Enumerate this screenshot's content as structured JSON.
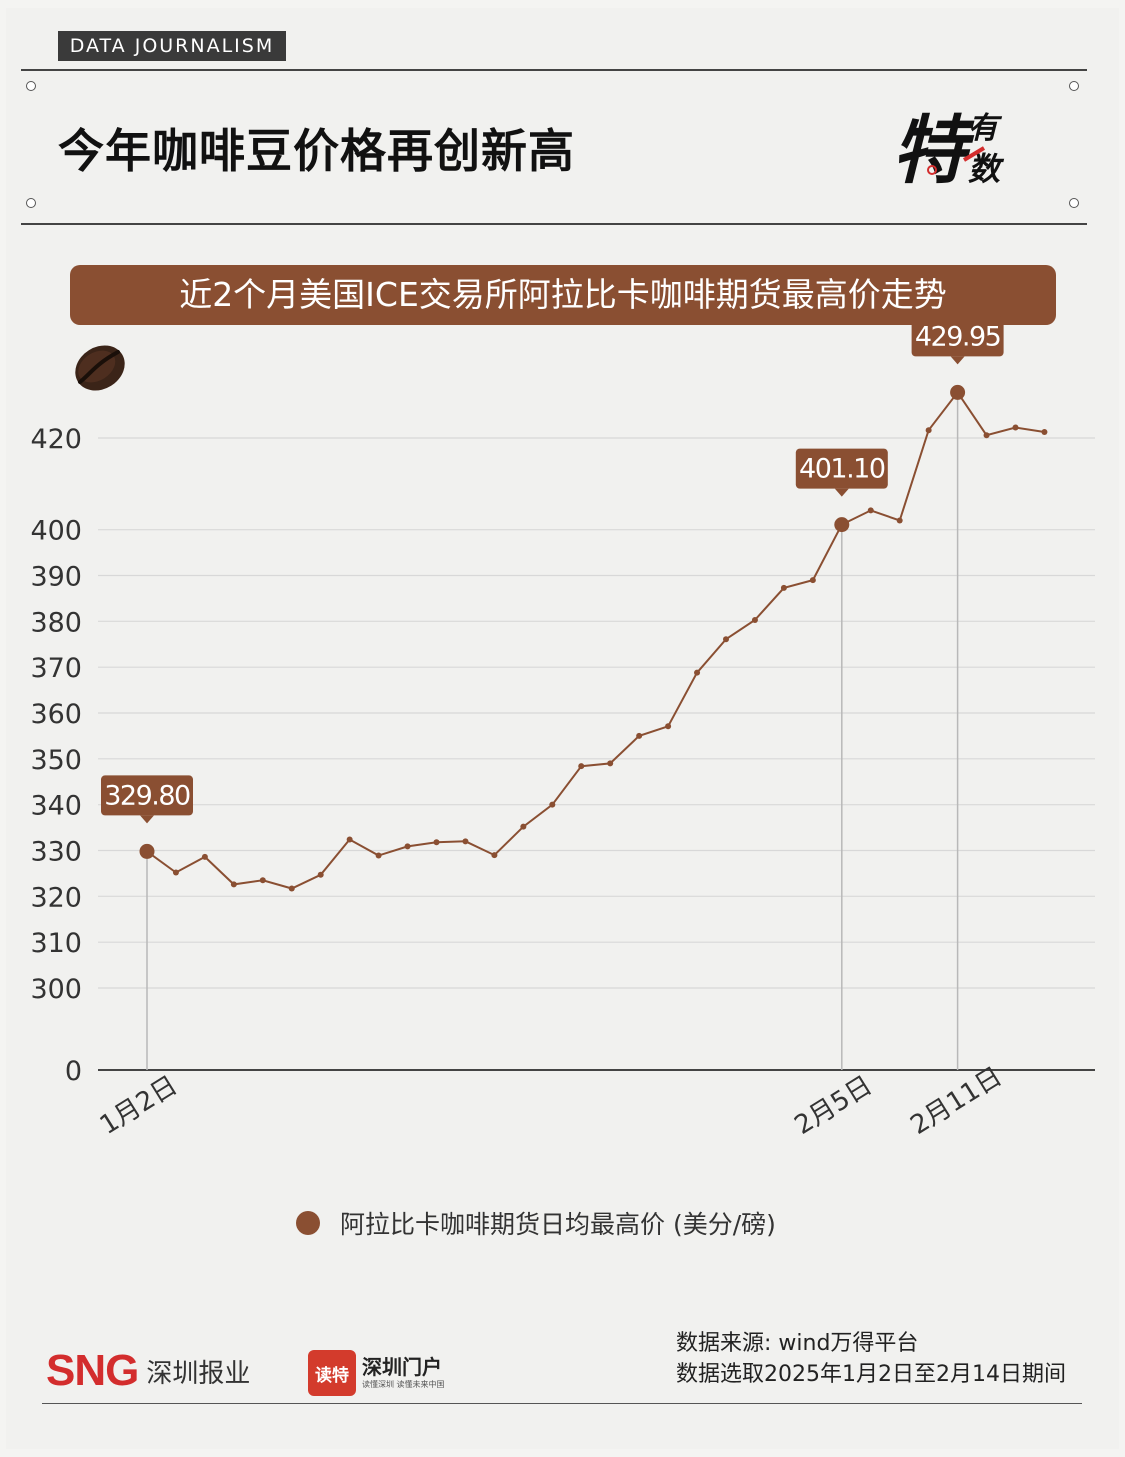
{
  "header": {
    "tag": "DATA JOURNALISM",
    "title": "今年咖啡豆价格再创新高",
    "logo_big": "特",
    "logo_small_top": "有",
    "logo_small_bottom": "数"
  },
  "colors": {
    "brown": "#8a4f32",
    "line": "#8a4f32",
    "grid": "#d8d8d8"
  },
  "chart_data": {
    "type": "line",
    "title": "近2个月美国ICE交易所阿拉比卡咖啡期货最高价走势",
    "legend_label": "阿拉比卡咖啡期货日均最高价 (美分/磅)",
    "legend_position": "bottom",
    "grid": true,
    "y_ticks": [
      "420",
      "400",
      "390",
      "380",
      "370",
      "360",
      "350",
      "340",
      "330",
      "320",
      "310",
      "300",
      "0"
    ],
    "y_tick_values": [
      420,
      400,
      390,
      380,
      370,
      360,
      350,
      340,
      330,
      320,
      310,
      300,
      0
    ],
    "y_axis_break": "0 then 300 to 420",
    "x_tick_labels": [
      {
        "index": 0,
        "label": "1月2日"
      },
      {
        "index": 24,
        "label": "2月5日"
      },
      {
        "index": 28,
        "label": "2月11日"
      }
    ],
    "series": [
      {
        "values": [
          329.8,
          325.2,
          328.6,
          322.6,
          323.5,
          321.7,
          324.7,
          332.4,
          328.9,
          330.9,
          331.8,
          332.0,
          329.0,
          335.2,
          340.0,
          348.4,
          349.0,
          355.0,
          357.1,
          368.8,
          376.1,
          380.3,
          387.3,
          389.0,
          401.1,
          404.2,
          402.0,
          421.7,
          429.95,
          420.6,
          422.3,
          421.3
        ]
      }
    ],
    "annotations": [
      {
        "index": 0,
        "label": "329.80"
      },
      {
        "index": 24,
        "label": "401.10"
      },
      {
        "index": 28,
        "label": "429.95"
      }
    ]
  },
  "footer": {
    "source_line1": "数据来源: wind万得平台",
    "source_line2": "数据选取2025年1月2日至2月14日期间",
    "sng_mark": "SNG",
    "sng_text": "深圳报业",
    "dute_box": "读特",
    "dute_name": "深圳门户",
    "dute_sub": "读懂深圳 读懂未来中国"
  }
}
